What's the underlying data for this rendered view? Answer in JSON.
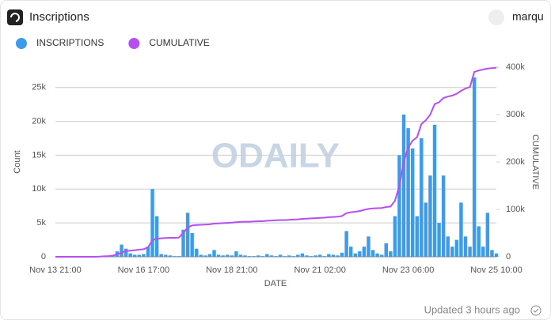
{
  "header": {
    "title": "Inscriptions",
    "user": "marqu"
  },
  "footer": {
    "updated": "Updated 3 hours ago"
  },
  "watermark": "ODAILY",
  "chart_data": {
    "type": "bar",
    "x_label": "DATE",
    "y_label": "Count",
    "y2_label": "CUMULATIVE",
    "categories": [
      "Nov 13 21:00",
      null,
      null,
      null,
      null,
      null,
      null,
      null,
      null,
      null,
      null,
      null,
      null,
      null,
      null,
      null,
      null,
      null,
      null,
      null,
      "Nov 16 17:00",
      null,
      null,
      null,
      null,
      null,
      null,
      null,
      null,
      null,
      null,
      null,
      null,
      null,
      null,
      null,
      null,
      null,
      null,
      null,
      "Nov 18 21:00",
      null,
      null,
      null,
      null,
      null,
      null,
      null,
      null,
      null,
      null,
      null,
      null,
      null,
      null,
      null,
      null,
      null,
      null,
      null,
      "Nov 21 02:00",
      null,
      null,
      null,
      null,
      null,
      null,
      null,
      null,
      null,
      null,
      null,
      null,
      null,
      null,
      null,
      null,
      null,
      null,
      null,
      "Nov 23 06:00",
      null,
      null,
      null,
      null,
      null,
      null,
      null,
      null,
      null,
      null,
      null,
      null,
      null,
      null,
      null,
      null,
      null,
      null,
      null,
      "Nov 25 10:00"
    ],
    "series": [
      {
        "name": "INSCRIPTIONS",
        "color": "#3d9be9",
        "values": [
          0,
          0,
          0,
          0,
          0,
          0,
          0,
          0,
          0,
          0,
          50,
          100,
          100,
          200,
          800,
          1800,
          1200,
          500,
          300,
          300,
          400,
          1500,
          10000,
          6000,
          400,
          300,
          200,
          100,
          100,
          4000,
          6500,
          3500,
          1200,
          300,
          200,
          400,
          1000,
          300,
          200,
          300,
          200,
          800,
          300,
          200,
          100,
          100,
          200,
          100,
          400,
          200,
          100,
          300,
          100,
          200,
          100,
          300,
          500,
          200,
          100,
          200,
          300,
          100,
          400,
          300,
          200,
          600,
          3800,
          1500,
          500,
          800,
          1500,
          3000,
          1000,
          500,
          300,
          2000,
          800,
          6000,
          15000,
          21000,
          19000,
          16000,
          6000,
          17500,
          8000,
          12000,
          19500,
          5000,
          12000,
          3000,
          1500,
          2500,
          8000,
          3000,
          1500,
          26500,
          4500,
          1500,
          6500,
          1000,
          500
        ]
      },
      {
        "name": "CUMULATIVE",
        "color": "#b54ff0",
        "type": "line",
        "axis": "y2",
        "values": [
          0,
          0,
          0,
          0,
          0,
          0,
          0,
          0,
          0,
          0,
          500,
          1000,
          1500,
          2500,
          5000,
          9000,
          12000,
          13000,
          14000,
          15000,
          16000,
          20000,
          35000,
          38000,
          39000,
          39500,
          40000,
          40000,
          40500,
          50000,
          62000,
          66000,
          67000,
          67500,
          68000,
          68500,
          70000,
          70500,
          71000,
          71500,
          72000,
          73000,
          73500,
          74000,
          74000,
          74500,
          75000,
          75000,
          76000,
          76500,
          77000,
          77500,
          77500,
          78000,
          78500,
          79000,
          80000,
          80500,
          81000,
          81500,
          82000,
          82500,
          83500,
          84000,
          84500,
          86000,
          92000,
          94000,
          95000,
          96500,
          99000,
          101000,
          102000,
          102500,
          103000,
          105000,
          106000,
          118000,
          150000,
          200000,
          230000,
          245000,
          252000,
          280000,
          288000,
          300000,
          322000,
          326000,
          335000,
          338000,
          340000,
          344000,
          350000,
          355000,
          358000,
          390000,
          393000,
          395000,
          397000,
          398000,
          399000
        ]
      }
    ],
    "ylim": [
      0,
      28000
    ],
    "yticks": [
      0,
      {
        "value": 5000,
        "label": "5k"
      },
      {
        "value": 10000,
        "label": "10k"
      },
      {
        "value": 15000,
        "label": "15k"
      },
      {
        "value": 20000,
        "label": "20k"
      },
      {
        "value": 25000,
        "label": "25k"
      }
    ],
    "y2lim": [
      0,
      400000
    ],
    "y2ticks": [
      0,
      {
        "value": 100000,
        "label": "100k"
      },
      {
        "value": 200000,
        "label": "200k"
      },
      {
        "value": 300000,
        "label": "300k"
      },
      {
        "value": 400000,
        "label": "400k"
      }
    ],
    "grid": true
  }
}
